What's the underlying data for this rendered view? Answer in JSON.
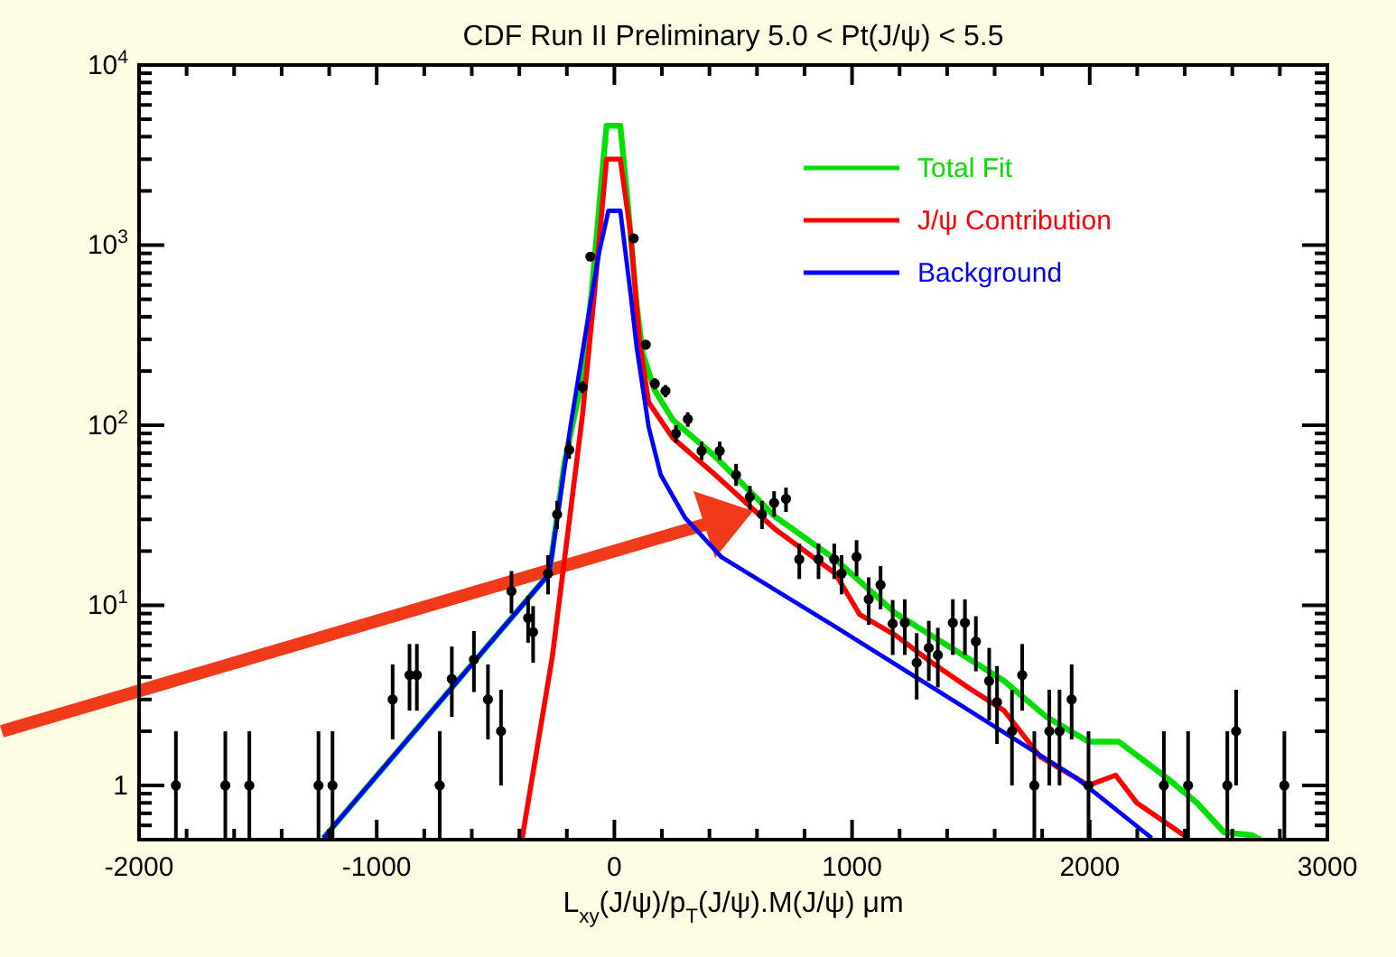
{
  "chart_data": {
    "type": "line",
    "title": "CDF Run II Preliminary 5.0 < Pt(J/ψ) < 5.5",
    "xlabel": "L$_{xy}$(J/ψ)/p$_{T}$(J/ψ).M(J/ψ)  μm",
    "log": "y",
    "legend": "top right",
    "xlim": [
      -2000,
      3000
    ],
    "ylim": [
      0.5,
      10000
    ],
    "xticks": [
      -2000,
      {
        "value": -1800,
        "label": null
      },
      {
        "value": -1600,
        "label": null
      },
      {
        "value": -1400,
        "label": null
      },
      {
        "value": -1200,
        "label": null
      },
      -1000,
      {
        "value": -800,
        "label": null
      },
      {
        "value": -600,
        "label": null
      },
      {
        "value": -400,
        "label": null
      },
      {
        "value": -200,
        "label": null
      },
      0,
      {
        "value": 200,
        "label": null
      },
      {
        "value": 400,
        "label": null
      },
      {
        "value": 600,
        "label": null
      },
      {
        "value": 800,
        "label": null
      },
      1000,
      {
        "value": 1200,
        "label": null
      },
      {
        "value": 1400,
        "label": null
      },
      {
        "value": 1600,
        "label": null
      },
      {
        "value": 1800,
        "label": null
      },
      2000,
      {
        "value": 2200,
        "label": null
      },
      {
        "value": 2400,
        "label": null
      },
      {
        "value": 2600,
        "label": null
      },
      {
        "value": 2800,
        "label": null
      },
      3000
    ],
    "yticks": [
      {
        "value": 0.6,
        "label": null
      },
      {
        "value": 0.7,
        "label": null
      },
      {
        "value": 0.8,
        "label": null
      },
      {
        "value": 0.9,
        "label": null
      },
      1,
      {
        "value": 2,
        "label": null
      },
      {
        "value": 3,
        "label": null
      },
      {
        "value": 4,
        "label": null
      },
      {
        "value": 5,
        "label": null
      },
      {
        "value": 6,
        "label": null
      },
      {
        "value": 7,
        "label": null
      },
      {
        "value": 8,
        "label": null
      },
      {
        "value": 9,
        "label": null
      },
      {
        "value": 10,
        "label": "10$^{1}$"
      },
      {
        "value": 20,
        "label": null
      },
      {
        "value": 30,
        "label": null
      },
      {
        "value": 40,
        "label": null
      },
      {
        "value": 50,
        "label": null
      },
      {
        "value": 60,
        "label": null
      },
      {
        "value": 70,
        "label": null
      },
      {
        "value": 80,
        "label": null
      },
      {
        "value": 90,
        "label": null
      },
      {
        "value": 100,
        "label": "10$^{2}$"
      },
      {
        "value": 200,
        "label": null
      },
      {
        "value": 300,
        "label": null
      },
      {
        "value": 400,
        "label": null
      },
      {
        "value": 500,
        "label": null
      },
      {
        "value": 600,
        "label": null
      },
      {
        "value": 700,
        "label": null
      },
      {
        "value": 800,
        "label": null
      },
      {
        "value": 900,
        "label": null
      },
      {
        "value": 1000,
        "label": "10$^{3}$"
      },
      {
        "value": 2000,
        "label": null
      },
      {
        "value": 3000,
        "label": null
      },
      {
        "value": 4000,
        "label": null
      },
      {
        "value": 5000,
        "label": null
      },
      {
        "value": 6000,
        "label": null
      },
      {
        "value": 7000,
        "label": null
      },
      {
        "value": 8000,
        "label": null
      },
      {
        "value": 9000,
        "label": null
      },
      {
        "value": 10000,
        "label": "10$^{4}$"
      }
    ],
    "series": [
      {
        "type": "scatter",
        "marker": "circle",
        "color": "#000000",
        "x": [
          -1845,
          -1637,
          -1536,
          -1245,
          -1186,
          -933,
          -862,
          -831,
          -735,
          -684,
          -591,
          -532,
          -477,
          -433,
          -363,
          -342,
          -279,
          -241,
          -190,
          -134,
          -101,
          81,
          132,
          170,
          215,
          259,
          309,
          367,
          443,
          512,
          570,
          621,
          672,
          722,
          778,
          859,
          925,
          956,
          1019,
          1070,
          1120,
          1171,
          1222,
          1272,
          1323,
          1361,
          1424,
          1475,
          1521,
          1577,
          1610,
          1673,
          1716,
          1767,
          1830,
          1873,
          1924,
          1995,
          2312,
          2414,
          2579,
          2616,
          2819
        ],
        "values": [
          1,
          1,
          1,
          1,
          1,
          3,
          4.1,
          4.1,
          1,
          3.9,
          5,
          3,
          2,
          12,
          8.5,
          7.1,
          15,
          32,
          73,
          163,
          863,
          1090,
          280,
          170,
          155,
          90,
          108,
          72,
          72,
          53,
          40,
          32,
          37,
          39,
          18,
          18,
          18,
          15,
          18.6,
          10.8,
          13,
          7.9,
          8,
          4.8,
          5.8,
          5.3,
          8,
          8,
          6.3,
          3.8,
          2.9,
          2,
          4.1,
          1,
          2,
          2,
          3,
          1,
          1,
          1,
          1,
          2,
          1
        ],
        "errors": [
          [
            0.5,
            2
          ],
          [
            0.5,
            2
          ],
          [
            0.5,
            2
          ],
          [
            0.5,
            2
          ],
          [
            0.5,
            2
          ],
          [
            1.8,
            4.7
          ],
          [
            2.6,
            6.1
          ],
          [
            2.6,
            6.1
          ],
          [
            0.5,
            2
          ],
          [
            2.4,
            5.9
          ],
          [
            3.3,
            7.2
          ],
          [
            1.8,
            4.7
          ],
          [
            1,
            3.4
          ],
          [
            9,
            15.5
          ],
          [
            6.2,
            11.3
          ],
          [
            4.8,
            9.9
          ],
          [
            11.5,
            19
          ],
          [
            26.5,
            38
          ],
          [
            65,
            82
          ],
          [
            151,
            175
          ],
          [
            833,
            893
          ],
          [
            1057,
            1123
          ],
          [
            263,
            297
          ],
          [
            158,
            182
          ],
          [
            143,
            167
          ],
          [
            80,
            100
          ],
          [
            98,
            118
          ],
          [
            64,
            81
          ],
          [
            64,
            81
          ],
          [
            46,
            61
          ],
          [
            34,
            46
          ],
          [
            26.5,
            38
          ],
          [
            31,
            43
          ],
          [
            33,
            45
          ],
          [
            14,
            22
          ],
          [
            14,
            22
          ],
          [
            14,
            22
          ],
          [
            11.5,
            19
          ],
          [
            14.5,
            23
          ],
          [
            7.8,
            14.3
          ],
          [
            9.5,
            16.5
          ],
          [
            5.3,
            10.7
          ],
          [
            5.3,
            10.8
          ],
          [
            3,
            7
          ],
          [
            3.8,
            8.2
          ],
          [
            3.5,
            7.5
          ],
          [
            5.3,
            10.8
          ],
          [
            5.3,
            10.8
          ],
          [
            4.3,
            8.7
          ],
          [
            2.3,
            5.8
          ],
          [
            1.7,
            4.6
          ],
          [
            1,
            3.4
          ],
          [
            2.6,
            6.1
          ],
          [
            0.5,
            2
          ],
          [
            1,
            3.4
          ],
          [
            1,
            3.4
          ],
          [
            1.8,
            4.7
          ],
          [
            0.5,
            2
          ],
          [
            0.5,
            2
          ],
          [
            0.5,
            2
          ],
          [
            0.5,
            2
          ],
          [
            1,
            3.4
          ],
          [
            0.5,
            2
          ]
        ]
      },
      {
        "name": "Total Fit",
        "color": "#00e000",
        "x": [
          -1224,
          -274,
          -210,
          -134,
          -96,
          -46,
          -33,
          25,
          56,
          94,
          119,
          170,
          246,
          424,
          677,
          930,
          1184,
          1437,
          1640,
          1818,
          1995,
          2122,
          2325,
          2451,
          2565,
          2680,
          2718
        ],
        "values": [
          0.51,
          15,
          62,
          183,
          540,
          3000,
          4600,
          4600,
          1740,
          465,
          250,
          156,
          107,
          67,
          31,
          18,
          9,
          5.6,
          3.8,
          2.4,
          1.75,
          1.75,
          1.1,
          0.8,
          0.55,
          0.53,
          0.5
        ]
      },
      {
        "name": "J/ψ Contribution",
        "color": "#ff0000",
        "x": [
          -388,
          -261,
          -198,
          -134,
          -84,
          -33,
          25,
          68,
          106,
          144,
          246,
          424,
          677,
          930,
          1032,
          1184,
          1336,
          1488,
          1640,
          1792,
          1995,
          2109,
          2198,
          2414
        ],
        "values": [
          0.51,
          5.2,
          24,
          115,
          540,
          3000,
          3000,
          1170,
          290,
          134,
          85,
          53,
          26.4,
          15,
          8.9,
          6.8,
          4.8,
          3.5,
          2.6,
          1.44,
          1,
          1.14,
          0.8,
          0.51
        ]
      },
      {
        "name": "Background",
        "color": "#0000ff",
        "x": [
          -1224,
          -274,
          -185,
          -110,
          -63,
          -25,
          25,
          68,
          94,
          144,
          195,
          297,
          449,
          930,
          1437,
          1944,
          2261
        ],
        "values": [
          0.51,
          15,
          98,
          400,
          930,
          1550,
          1550,
          540,
          270,
          98,
          53,
          30.7,
          18.6,
          7.6,
          2.9,
          1.1,
          0.51
        ]
      }
    ]
  }
}
